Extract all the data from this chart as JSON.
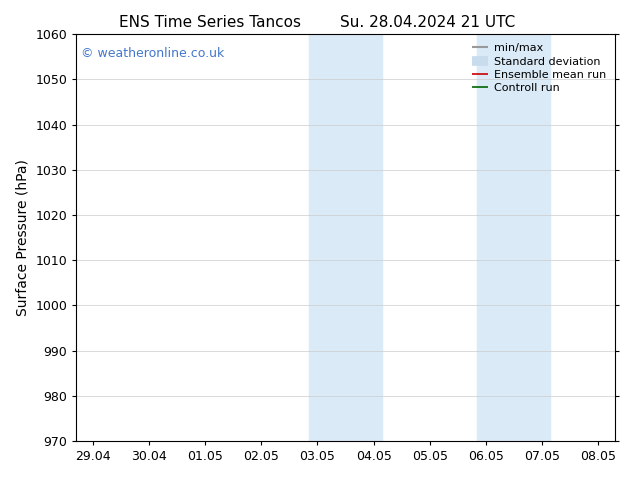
{
  "title_left": "ENS Time Series Tancos",
  "title_right": "Su. 28.04.2024 21 UTC",
  "ylabel": "Surface Pressure (hPa)",
  "ylim": [
    970,
    1060
  ],
  "yticks": [
    970,
    980,
    990,
    1000,
    1010,
    1020,
    1030,
    1040,
    1050,
    1060
  ],
  "xtick_labels": [
    "29.04",
    "30.04",
    "01.05",
    "02.05",
    "03.05",
    "04.05",
    "05.05",
    "06.05",
    "07.05",
    "08.05"
  ],
  "xtick_positions": [
    0,
    1,
    2,
    3,
    4,
    5,
    6,
    7,
    8,
    9
  ],
  "xlim": [
    -0.3,
    9.3
  ],
  "shaded_regions": [
    {
      "xmin": 3.85,
      "xmax": 4.5,
      "color": "#daeaf7"
    },
    {
      "xmin": 4.5,
      "xmax": 5.15,
      "color": "#daeaf7"
    },
    {
      "xmin": 6.85,
      "xmax": 7.5,
      "color": "#daeaf7"
    },
    {
      "xmin": 7.5,
      "xmax": 8.15,
      "color": "#daeaf7"
    }
  ],
  "watermark_text": "© weatheronline.co.uk",
  "watermark_color": "#4477cc",
  "legend_items": [
    {
      "label": "min/max",
      "color": "#999999",
      "lw": 1.5
    },
    {
      "label": "Standard deviation",
      "color": "#c8dced",
      "lw": 7
    },
    {
      "label": "Ensemble mean run",
      "color": "#cc0000",
      "lw": 1.2
    },
    {
      "label": "Controll run",
      "color": "#006600",
      "lw": 1.2
    }
  ],
  "bg_color": "#ffffff",
  "plot_bg_color": "#ffffff",
  "grid_color": "#cccccc",
  "title_fontsize": 11,
  "axis_label_fontsize": 10,
  "tick_fontsize": 9,
  "legend_fontsize": 8
}
